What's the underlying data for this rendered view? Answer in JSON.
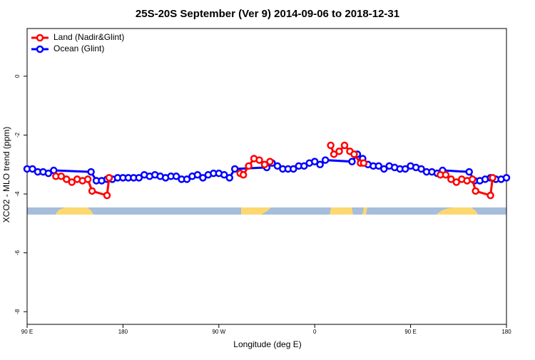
{
  "chart_data": {
    "type": "line",
    "title": "25S-20S September (Ver 9)   2014-09-06 to 2018-12-31",
    "x_label": "Longitude (deg E)",
    "y_label": "XCO2 - MLO trend (ppm)",
    "xlim": [
      90,
      540
    ],
    "ylim": [
      -8.43,
      1.62
    ],
    "xticks": [
      {
        "value": 90,
        "label": "90 E"
      },
      180,
      {
        "value": 270,
        "label": "90 W"
      },
      {
        "value": 360,
        "label": "0"
      },
      {
        "value": 450,
        "label": "90 E"
      },
      {
        "value": 540,
        "label": "180"
      }
    ],
    "yticks": [
      0,
      -2,
      -4,
      -6,
      -8
    ],
    "legend": "upper left",
    "series": [
      {
        "name": "Ocean (Glint)",
        "color": "#0000ff",
        "x": [
          90,
          95,
          100,
          105,
          110,
          115,
          150,
          155,
          160,
          165,
          170,
          175,
          180,
          185,
          190,
          195,
          200,
          205,
          210,
          215,
          220,
          225,
          230,
          235,
          240,
          245,
          250,
          255,
          260,
          265,
          270,
          275,
          280,
          285,
          315,
          320,
          325,
          330,
          335,
          340,
          345,
          350,
          355,
          360,
          365,
          370,
          395,
          400,
          405,
          410,
          415,
          420,
          425,
          430,
          435,
          440,
          445,
          450,
          455,
          460,
          465,
          470,
          475,
          480,
          505,
          510,
          515,
          520,
          525,
          530,
          535,
          540
        ],
        "values": [
          -3.15,
          -3.15,
          -3.25,
          -3.25,
          -3.3,
          -3.2,
          -3.25,
          -3.55,
          -3.55,
          -3.5,
          -3.5,
          -3.45,
          -3.45,
          -3.45,
          -3.45,
          -3.45,
          -3.35,
          -3.4,
          -3.35,
          -3.4,
          -3.45,
          -3.4,
          -3.4,
          -3.5,
          -3.5,
          -3.4,
          -3.35,
          -3.45,
          -3.35,
          -3.3,
          -3.3,
          -3.35,
          -3.45,
          -3.15,
          -3.1,
          -2.95,
          -3.05,
          -3.15,
          -3.15,
          -3.15,
          -3.05,
          -3.05,
          -2.95,
          -2.9,
          -3.0,
          -2.85,
          -2.9,
          -2.65,
          -2.8,
          -3.0,
          -3.05,
          -3.05,
          -3.15,
          -3.05,
          -3.1,
          -3.15,
          -3.15,
          -3.05,
          -3.1,
          -3.15,
          -3.25,
          -3.25,
          -3.3,
          -3.2,
          -3.25,
          -3.55,
          -3.55,
          -3.5,
          -3.45,
          -3.5,
          -3.5,
          -3.45
        ]
      },
      {
        "name": "Land (Nadir&Glint)",
        "color": "#ff0000",
        "x": [
          117,
          122,
          127,
          132,
          137,
          142,
          147,
          151,
          165,
          167,
          null,
          290,
          293,
          298,
          303,
          308,
          313,
          318,
          null,
          375,
          378,
          383,
          388,
          393,
          397,
          403,
          406,
          null,
          478,
          483,
          488,
          493,
          498,
          503,
          508,
          511,
          525,
          527
        ],
        "values": [
          -3.4,
          -3.4,
          -3.5,
          -3.6,
          -3.5,
          -3.55,
          -3.5,
          -3.9,
          -4.05,
          -3.45,
          null,
          -3.3,
          -3.35,
          -3.05,
          -2.8,
          -2.85,
          -3.0,
          -2.9,
          null,
          -2.35,
          -2.65,
          -2.55,
          -2.35,
          -2.55,
          -2.65,
          -2.95,
          -2.95,
          null,
          -3.35,
          -3.35,
          -3.5,
          -3.6,
          -3.5,
          -3.55,
          -3.5,
          -3.9,
          -4.05,
          -3.45
        ]
      }
    ]
  }
}
